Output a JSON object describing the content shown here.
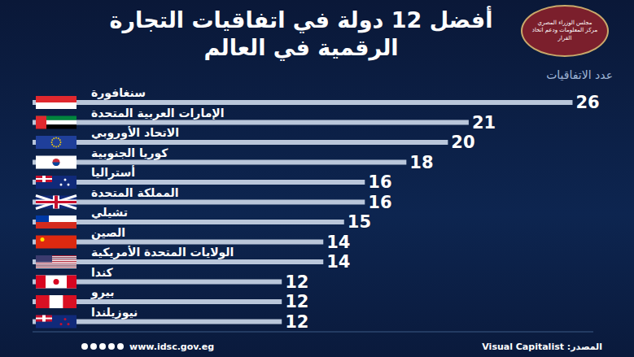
{
  "chart_data": {
    "type": "bar",
    "orientation": "horizontal",
    "title": "أفضل 12 دولة في اتفاقيات التجارة الرقمية في العالم",
    "xlabel": "عدد الاتفاقيات",
    "categories": [
      "سنغافورة",
      "الإمارات العربية المتحدة",
      "الاتحاد الأوروبي",
      "كوريا الجنوبية",
      "أستراليا",
      "المملكة المتحدة",
      "تشيلي",
      "الصين",
      "الولايات المتحدة الأمريكية",
      "كندا",
      "بيرو",
      "نيوزيلندا"
    ],
    "values": [
      26,
      21,
      20,
      18,
      16,
      16,
      15,
      14,
      14,
      12,
      12,
      12
    ],
    "color": "#b9c6da",
    "xlim": [
      0,
      27
    ],
    "data_labels": true,
    "tick_labels": false,
    "source": "المصدر: Visual Capitalist",
    "website": "www.idsc.gov.eg",
    "logo_text": [
      "مجلس الوزراء المصري",
      "مركز المعلومات ودعم اتخاذ القرار"
    ]
  }
}
